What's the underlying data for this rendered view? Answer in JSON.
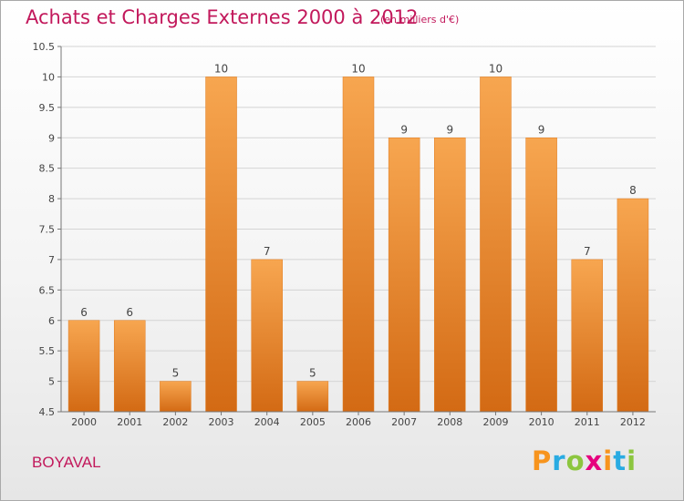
{
  "chart_data": {
    "type": "bar",
    "title": "Achats et Charges Externes 2000 à 2012",
    "unit": "(en milliers d'€)",
    "categories": [
      "2000",
      "2001",
      "2002",
      "2003",
      "2004",
      "2005",
      "2006",
      "2007",
      "2008",
      "2009",
      "2010",
      "2011",
      "2012"
    ],
    "values": [
      6,
      6,
      5,
      10,
      7,
      5,
      10,
      9,
      9,
      10,
      9,
      7,
      8
    ],
    "ylim": [
      4.5,
      10.5
    ],
    "yticks": [
      "4.5",
      "5",
      "5.5",
      "6",
      "6.5",
      "7",
      "7.5",
      "8",
      "8.5",
      "9",
      "9.5",
      "10",
      "10.5"
    ],
    "grid": true,
    "bar_color": "#f08c2e"
  },
  "footer": {
    "commune": "BOYAVAL",
    "brand_letters": [
      "P",
      "r",
      "o",
      "x",
      "i",
      "t",
      "i"
    ],
    "brand_colors": [
      "#f7941d",
      "#29abe2",
      "#8cc63f",
      "#e6007e",
      "#f7941d",
      "#29abe2",
      "#8cc63f"
    ]
  }
}
